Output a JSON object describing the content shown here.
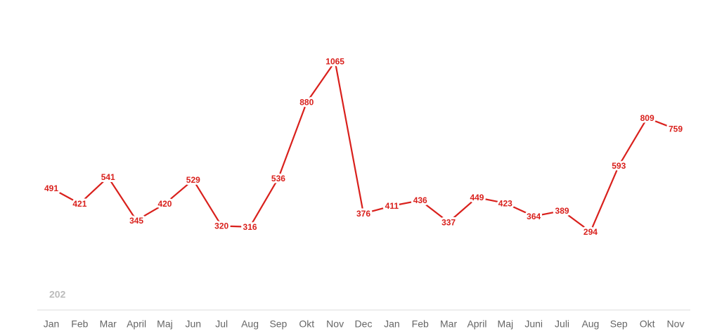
{
  "chart_data": {
    "type": "line",
    "categories": [
      "Jan",
      "Feb",
      "Mar",
      "April",
      "Maj",
      "Jun",
      "Jul",
      "Aug",
      "Sep",
      "Okt",
      "Nov",
      "Dec",
      "Jan",
      "Feb",
      "Mar",
      "April",
      "Maj",
      "Juni",
      "Juli",
      "Aug",
      "Sep",
      "Okt",
      "Nov"
    ],
    "values": [
      491,
      421,
      541,
      345,
      420,
      529,
      320,
      316,
      536,
      880,
      1065,
      376,
      411,
      436,
      337,
      449,
      423,
      364,
      389,
      294,
      593,
      809,
      759
    ],
    "color": "#d9201c",
    "ylim": [
      0,
      1200
    ],
    "annotation": "202"
  }
}
